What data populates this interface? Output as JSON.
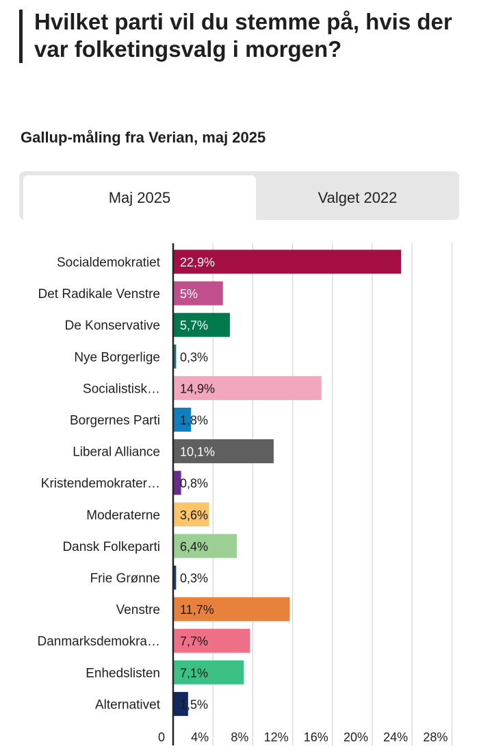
{
  "header": {
    "title": "Hvilket parti vil du stemme på, hvis der var folketingsvalg i morgen?",
    "subtitle": "Gallup-måling fra Verian, maj 2025"
  },
  "tabs": [
    {
      "label": "Maj 2025",
      "active": true
    },
    {
      "label": "Valget 2022",
      "active": false
    }
  ],
  "chart_data": {
    "type": "bar",
    "orientation": "horizontal",
    "categories": [
      "Socialdemokratiet",
      "Det Radikale Venstre",
      "De Konservative",
      "Nye Borgerlige",
      "Socialistisk…",
      "Borgernes Parti",
      "Liberal Alliance",
      "Kristendemokrater…",
      "Moderaterne",
      "Dansk Folkeparti",
      "Frie Grønne",
      "Venstre",
      "Danmarksdemokra…",
      "Enhedslisten",
      "Alternativet"
    ],
    "values": [
      22.9,
      5,
      5.7,
      0.3,
      14.9,
      1.8,
      10.1,
      0.8,
      3.6,
      6.4,
      0.3,
      11.7,
      7.7,
      7.1,
      1.5
    ],
    "labels": [
      "22,9%",
      "5%",
      "5,7%",
      "0,3%",
      "14,9%",
      "1,8%",
      "10,1%",
      "0,8%",
      "3,6%",
      "6,4%",
      "0,3%",
      "11,7%",
      "7,7%",
      "7,1%",
      "1,5%"
    ],
    "colors": [
      "#a50d45",
      "#c04f8e",
      "#007a4d",
      "#1f6e72",
      "#f2a7bf",
      "#0f7fbf",
      "#5f5f5f",
      "#6a2c8e",
      "#fcc46b",
      "#9ccf94",
      "#1a3a7a",
      "#e8813c",
      "#ee6f86",
      "#3cc184",
      "#12285e"
    ],
    "label_colors": [
      "#ffffff",
      "#ffffff",
      "#ffffff",
      "#1a1a1a",
      "#1a1a1a",
      "#1a1a1a",
      "#ffffff",
      "#1a1a1a",
      "#1a1a1a",
      "#1a1a1a",
      "#1a1a1a",
      "#1a1a1a",
      "#1a1a1a",
      "#1a1a1a",
      "#1a1a1a"
    ],
    "xlim": [
      0,
      28
    ],
    "xticks": [
      0,
      4,
      8,
      12,
      16,
      20,
      24,
      28
    ],
    "xtick_labels": [
      "0",
      "4%",
      "8%",
      "12%",
      "16%",
      "20%",
      "24%",
      "28%"
    ],
    "grid": true
  }
}
